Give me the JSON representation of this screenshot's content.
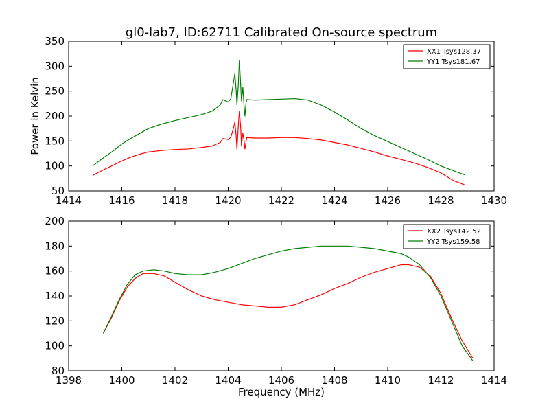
{
  "figure": {
    "title": "gl0-lab7, ID:62711 Calibrated On-source spectrum"
  },
  "chart_data": [
    {
      "type": "line",
      "title": "gl0-lab7, ID:62711 Calibrated On-source spectrum",
      "xlabel": "",
      "ylabel": "Power in Kelvin",
      "xlim": [
        1414,
        1430
      ],
      "ylim": [
        50,
        350
      ],
      "xticks": [
        1414,
        1416,
        1418,
        1420,
        1422,
        1424,
        1426,
        1428,
        1430
      ],
      "yticks": [
        50,
        100,
        150,
        200,
        250,
        300,
        350
      ],
      "legend_position": "top-right",
      "grid": false,
      "series": [
        {
          "name": "XX1 Tsys128.37",
          "color": "#ff0000",
          "points": [
            [
              1414.9,
              81
            ],
            [
              1415.3,
              92
            ],
            [
              1415.7,
              102
            ],
            [
              1416.0,
              110
            ],
            [
              1416.3,
              117
            ],
            [
              1416.7,
              124
            ],
            [
              1417.0,
              128
            ],
            [
              1417.5,
              131
            ],
            [
              1418.0,
              133
            ],
            [
              1418.5,
              134
            ],
            [
              1419.0,
              137
            ],
            [
              1419.4,
              140
            ],
            [
              1419.7,
              147
            ],
            [
              1419.8,
              155
            ],
            [
              1420.0,
              153
            ],
            [
              1420.1,
              158
            ],
            [
              1420.2,
              176
            ],
            [
              1420.25,
              188
            ],
            [
              1420.3,
              160
            ],
            [
              1420.33,
              133
            ],
            [
              1420.38,
              180
            ],
            [
              1420.42,
              209
            ],
            [
              1420.47,
              178
            ],
            [
              1420.5,
              140
            ],
            [
              1420.55,
              166
            ],
            [
              1420.6,
              150
            ],
            [
              1420.63,
              134
            ],
            [
              1420.67,
              148
            ],
            [
              1420.7,
              157
            ],
            [
              1421.0,
              156
            ],
            [
              1421.5,
              156
            ],
            [
              1422.0,
              157
            ],
            [
              1422.5,
              157
            ],
            [
              1423.0,
              155
            ],
            [
              1423.5,
              152
            ],
            [
              1424.0,
              147
            ],
            [
              1424.5,
              142
            ],
            [
              1425.0,
              135
            ],
            [
              1425.5,
              128
            ],
            [
              1426.0,
              120
            ],
            [
              1426.5,
              113
            ],
            [
              1427.0,
              106
            ],
            [
              1427.5,
              97
            ],
            [
              1428.0,
              86
            ],
            [
              1428.5,
              70
            ],
            [
              1428.9,
              62
            ]
          ]
        },
        {
          "name": "YY1 Tsys181.67",
          "color": "#008000",
          "points": [
            [
              1414.9,
              100
            ],
            [
              1415.3,
              116
            ],
            [
              1415.7,
              131
            ],
            [
              1416.0,
              144
            ],
            [
              1416.3,
              154
            ],
            [
              1416.7,
              166
            ],
            [
              1417.0,
              175
            ],
            [
              1417.5,
              184
            ],
            [
              1418.0,
              191
            ],
            [
              1418.5,
              197
            ],
            [
              1419.0,
              203
            ],
            [
              1419.4,
              210
            ],
            [
              1419.7,
              222
            ],
            [
              1419.8,
              233
            ],
            [
              1420.0,
              228
            ],
            [
              1420.1,
              235
            ],
            [
              1420.2,
              268
            ],
            [
              1420.25,
              285
            ],
            [
              1420.3,
              252
            ],
            [
              1420.33,
              222
            ],
            [
              1420.38,
              262
            ],
            [
              1420.42,
              311
            ],
            [
              1420.47,
              262
            ],
            [
              1420.5,
              230
            ],
            [
              1420.55,
              258
            ],
            [
              1420.6,
              218
            ],
            [
              1420.63,
              200
            ],
            [
              1420.67,
              226
            ],
            [
              1420.7,
              233
            ],
            [
              1421.0,
              232
            ],
            [
              1421.5,
              233
            ],
            [
              1422.0,
              234
            ],
            [
              1422.5,
              235
            ],
            [
              1423.0,
              232
            ],
            [
              1423.5,
              222
            ],
            [
              1424.0,
              208
            ],
            [
              1424.5,
              192
            ],
            [
              1425.0,
              175
            ],
            [
              1425.5,
              161
            ],
            [
              1426.0,
              149
            ],
            [
              1426.5,
              137
            ],
            [
              1427.0,
              125
            ],
            [
              1427.5,
              113
            ],
            [
              1428.0,
              100
            ],
            [
              1428.5,
              90
            ],
            [
              1428.9,
              82
            ]
          ]
        }
      ]
    },
    {
      "type": "line",
      "title": "",
      "xlabel": "Frequency (MHz)",
      "ylabel": "",
      "xlim": [
        1398,
        1414
      ],
      "ylim": [
        80,
        200
      ],
      "xticks": [
        1398,
        1400,
        1402,
        1404,
        1406,
        1408,
        1410,
        1412,
        1414
      ],
      "yticks": [
        80,
        100,
        120,
        140,
        160,
        180,
        200
      ],
      "legend_position": "top-right",
      "grid": false,
      "series": [
        {
          "name": "XX2 Tsys142.52",
          "color": "#ff0000",
          "points": [
            [
              1399.3,
              110
            ],
            [
              1399.6,
              122
            ],
            [
              1399.9,
              136
            ],
            [
              1400.2,
              147
            ],
            [
              1400.5,
              154
            ],
            [
              1400.8,
              158
            ],
            [
              1401.2,
              158
            ],
            [
              1401.6,
              156
            ],
            [
              1402.0,
              151
            ],
            [
              1402.5,
              145
            ],
            [
              1403.0,
              140
            ],
            [
              1403.5,
              137
            ],
            [
              1404.0,
              135
            ],
            [
              1404.5,
              133
            ],
            [
              1405.0,
              132
            ],
            [
              1405.5,
              131
            ],
            [
              1406.0,
              131
            ],
            [
              1406.5,
              133
            ],
            [
              1407.0,
              137
            ],
            [
              1407.5,
              141
            ],
            [
              1408.0,
              146
            ],
            [
              1408.5,
              150
            ],
            [
              1409.0,
              155
            ],
            [
              1409.5,
              159
            ],
            [
              1410.0,
              162
            ],
            [
              1410.5,
              165
            ],
            [
              1410.8,
              165
            ],
            [
              1411.2,
              163
            ],
            [
              1411.6,
              156
            ],
            [
              1412.0,
              142
            ],
            [
              1412.4,
              122
            ],
            [
              1412.8,
              104
            ],
            [
              1413.2,
              90
            ]
          ]
        },
        {
          "name": "YY2 Tsys159.58",
          "color": "#008000",
          "points": [
            [
              1399.3,
              110
            ],
            [
              1399.6,
              123
            ],
            [
              1399.9,
              137
            ],
            [
              1400.2,
              149
            ],
            [
              1400.5,
              157
            ],
            [
              1400.8,
              160
            ],
            [
              1401.2,
              161
            ],
            [
              1401.6,
              160
            ],
            [
              1402.0,
              158
            ],
            [
              1402.5,
              157
            ],
            [
              1403.0,
              157
            ],
            [
              1403.5,
              159
            ],
            [
              1404.0,
              162
            ],
            [
              1404.5,
              166
            ],
            [
              1405.0,
              170
            ],
            [
              1405.5,
              173
            ],
            [
              1406.0,
              176
            ],
            [
              1406.5,
              178
            ],
            [
              1407.0,
              179
            ],
            [
              1407.5,
              180
            ],
            [
              1408.0,
              180
            ],
            [
              1408.5,
              180
            ],
            [
              1409.0,
              179
            ],
            [
              1409.5,
              178
            ],
            [
              1410.0,
              176
            ],
            [
              1410.5,
              174
            ],
            [
              1410.8,
              171
            ],
            [
              1411.2,
              165
            ],
            [
              1411.6,
              155
            ],
            [
              1412.0,
              140
            ],
            [
              1412.4,
              120
            ],
            [
              1412.8,
              100
            ],
            [
              1413.2,
              88
            ]
          ]
        }
      ]
    }
  ]
}
